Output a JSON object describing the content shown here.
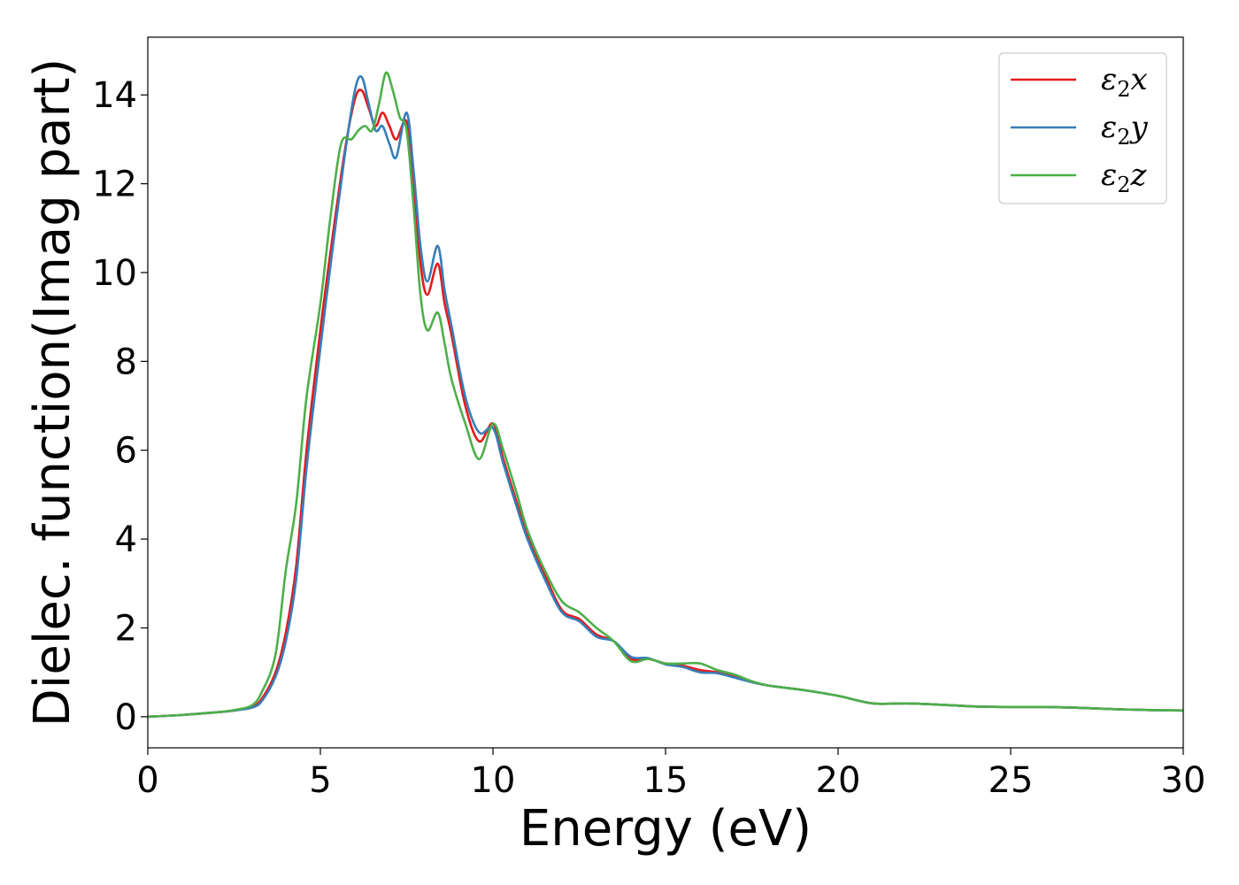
{
  "chart_data": {
    "type": "line",
    "xlabel": "Energy (eV)",
    "ylabel": "Dielec. function(Imag part)",
    "xlim": [
      0,
      30
    ],
    "ylim": [
      -0.7,
      15.3
    ],
    "xticks": [
      0,
      5,
      10,
      15,
      20,
      25,
      30
    ],
    "yticks": [
      0,
      2,
      4,
      6,
      8,
      10,
      12,
      14
    ],
    "grid": false,
    "legend_position": "top-right",
    "series": [
      {
        "name": "ε2x",
        "legend": {
          "base": "ε",
          "sub": "2",
          "var": "x"
        },
        "color": "#e41a1c",
        "x": [
          0,
          1,
          2,
          2.5,
          3.0,
          3.3,
          3.7,
          4.0,
          4.3,
          4.6,
          5.0,
          5.3,
          5.7,
          6.0,
          6.2,
          6.4,
          6.6,
          6.8,
          7.0,
          7.2,
          7.5,
          7.7,
          7.9,
          8.1,
          8.4,
          8.6,
          8.8,
          9.2,
          9.6,
          10.0,
          10.3,
          10.7,
          11.0,
          11.5,
          12.0,
          12.5,
          13.0,
          13.5,
          14.0,
          14.5,
          15.0,
          15.5,
          16.0,
          16.5,
          17.0,
          17.5,
          18.0,
          19.0,
          20.0,
          21.0,
          22.0,
          23.0,
          24.0,
          25.0,
          26.0,
          27.0,
          28.0,
          29.0,
          30.0
        ],
        "values": [
          0.0,
          0.04,
          0.1,
          0.14,
          0.22,
          0.4,
          1.0,
          1.9,
          3.4,
          6.0,
          8.7,
          10.5,
          12.7,
          13.9,
          14.1,
          13.7,
          13.3,
          13.6,
          13.3,
          13.0,
          13.4,
          12.0,
          10.2,
          9.5,
          10.2,
          9.3,
          8.6,
          7.0,
          6.2,
          6.6,
          5.8,
          4.8,
          4.1,
          3.2,
          2.4,
          2.2,
          1.85,
          1.7,
          1.3,
          1.3,
          1.2,
          1.15,
          1.05,
          1.0,
          0.9,
          0.78,
          0.7,
          0.6,
          0.47,
          0.3,
          0.3,
          0.27,
          0.23,
          0.22,
          0.22,
          0.2,
          0.17,
          0.15,
          0.14
        ]
      },
      {
        "name": "ε2y",
        "legend": {
          "base": "ε",
          "sub": "2",
          "var": "y"
        },
        "color": "#377eb8",
        "x": [
          0,
          1,
          2,
          2.5,
          3.0,
          3.3,
          3.7,
          4.0,
          4.3,
          4.6,
          5.0,
          5.3,
          5.7,
          6.0,
          6.2,
          6.4,
          6.6,
          6.8,
          7.0,
          7.2,
          7.5,
          7.7,
          7.9,
          8.1,
          8.4,
          8.6,
          8.8,
          9.2,
          9.6,
          10.0,
          10.3,
          10.7,
          11.0,
          11.5,
          12.0,
          12.5,
          13.0,
          13.5,
          14.0,
          14.5,
          15.0,
          15.5,
          16.0,
          16.5,
          17.0,
          17.5,
          18.0,
          19.0,
          20.0,
          21.0,
          22.0,
          23.0,
          24.0,
          25.0,
          26.0,
          27.0,
          28.0,
          29.0,
          30.0
        ],
        "values": [
          0.0,
          0.04,
          0.1,
          0.14,
          0.2,
          0.35,
          0.9,
          1.7,
          3.1,
          5.6,
          8.3,
          10.2,
          12.6,
          14.1,
          14.4,
          13.8,
          13.2,
          13.3,
          12.9,
          12.6,
          13.6,
          12.3,
          10.6,
          9.8,
          10.6,
          9.6,
          8.8,
          7.2,
          6.4,
          6.5,
          5.7,
          4.7,
          4.0,
          3.1,
          2.35,
          2.15,
          1.8,
          1.7,
          1.35,
          1.32,
          1.18,
          1.12,
          1.0,
          0.98,
          0.88,
          0.78,
          0.7,
          0.6,
          0.47,
          0.3,
          0.3,
          0.27,
          0.23,
          0.22,
          0.22,
          0.2,
          0.17,
          0.15,
          0.14
        ]
      },
      {
        "name": "ε2z",
        "legend": {
          "base": "ε",
          "sub": "2",
          "var": "z"
        },
        "color": "#4daf4a",
        "x": [
          0,
          1,
          2,
          2.5,
          3.0,
          3.3,
          3.7,
          4.0,
          4.3,
          4.6,
          5.0,
          5.3,
          5.6,
          5.9,
          6.1,
          6.3,
          6.5,
          6.7,
          6.9,
          7.1,
          7.3,
          7.5,
          7.7,
          7.9,
          8.1,
          8.4,
          8.6,
          8.8,
          9.2,
          9.6,
          10.0,
          10.3,
          10.7,
          11.0,
          11.5,
          12.0,
          12.5,
          13.0,
          13.5,
          14.0,
          14.5,
          15.0,
          15.5,
          16.0,
          16.5,
          17.0,
          17.5,
          18.0,
          19.0,
          20.0,
          21.0,
          22.0,
          23.0,
          24.0,
          25.0,
          26.0,
          27.0,
          28.0,
          29.0,
          30.0
        ],
        "values": [
          0.0,
          0.04,
          0.1,
          0.15,
          0.25,
          0.55,
          1.4,
          3.3,
          4.8,
          7.2,
          9.3,
          11.3,
          12.9,
          13.0,
          13.2,
          13.3,
          13.2,
          13.8,
          14.5,
          14.1,
          13.5,
          13.2,
          11.5,
          9.5,
          8.7,
          9.1,
          8.4,
          7.6,
          6.6,
          5.8,
          6.6,
          6.0,
          5.0,
          4.2,
          3.3,
          2.6,
          2.35,
          2.0,
          1.7,
          1.25,
          1.3,
          1.2,
          1.2,
          1.2,
          1.05,
          0.95,
          0.8,
          0.7,
          0.6,
          0.47,
          0.3,
          0.3,
          0.27,
          0.23,
          0.22,
          0.22,
          0.2,
          0.17,
          0.15,
          0.14
        ]
      }
    ]
  }
}
